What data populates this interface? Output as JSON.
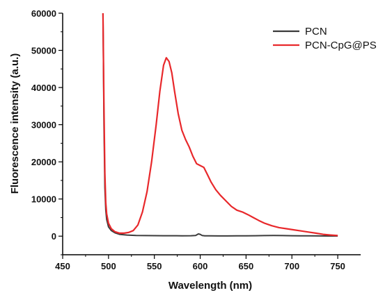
{
  "chart_data": {
    "type": "line",
    "xlabel": "Wavelength (nm)",
    "ylabel": "Fluorescence intensity (a.u.)",
    "xlim": [
      450,
      775
    ],
    "ylim": [
      -5000,
      60000
    ],
    "x_ticks": [
      450,
      500,
      550,
      600,
      650,
      700,
      750
    ],
    "y_ticks": [
      0,
      10000,
      20000,
      30000,
      40000,
      50000,
      60000
    ],
    "grid": false,
    "legend_position": "top-right",
    "series": [
      {
        "name": "PCN",
        "color": "#3a3a3a",
        "x": [
          494,
          495,
          496,
          497,
          498,
          500,
          503,
          507,
          512,
          520,
          530,
          540,
          550,
          560,
          570,
          580,
          590,
          595,
          598,
          600,
          602,
          605,
          610,
          620,
          630,
          640,
          650,
          660,
          670,
          680,
          690,
          700,
          710,
          720,
          730,
          740,
          750
        ],
        "y": [
          60000,
          30000,
          13000,
          7000,
          4500,
          2500,
          1500,
          900,
          500,
          300,
          200,
          150,
          130,
          120,
          110,
          100,
          120,
          200,
          600,
          500,
          200,
          100,
          80,
          60,
          70,
          90,
          100,
          120,
          150,
          180,
          150,
          120,
          100,
          80,
          60,
          50,
          40
        ]
      },
      {
        "name": "PCN-CpG@PS",
        "color": "#e8282b",
        "x": [
          494,
          495,
          496,
          497,
          498,
          500,
          503,
          507,
          512,
          517,
          522,
          527,
          532,
          537,
          542,
          547,
          552,
          556,
          560,
          563,
          566,
          569,
          572,
          576,
          580,
          584,
          588,
          592,
          596,
          600,
          604,
          608,
          612,
          617,
          622,
          628,
          634,
          640,
          646,
          652,
          658,
          664,
          670,
          678,
          686,
          694,
          702,
          710,
          718,
          726,
          734,
          742,
          750
        ],
        "y": [
          60000,
          35000,
          17000,
          9000,
          6000,
          3500,
          2000,
          1200,
          800,
          800,
          1000,
          1500,
          3000,
          6500,
          12000,
          20000,
          30000,
          39000,
          46000,
          48000,
          47000,
          44000,
          39000,
          33000,
          28500,
          26000,
          24000,
          21500,
          19500,
          19000,
          18500,
          16500,
          14500,
          12500,
          11000,
          9500,
          8000,
          7000,
          6500,
          5800,
          5000,
          4200,
          3500,
          2800,
          2300,
          2000,
          1700,
          1400,
          1100,
          800,
          500,
          300,
          150
        ]
      }
    ]
  }
}
